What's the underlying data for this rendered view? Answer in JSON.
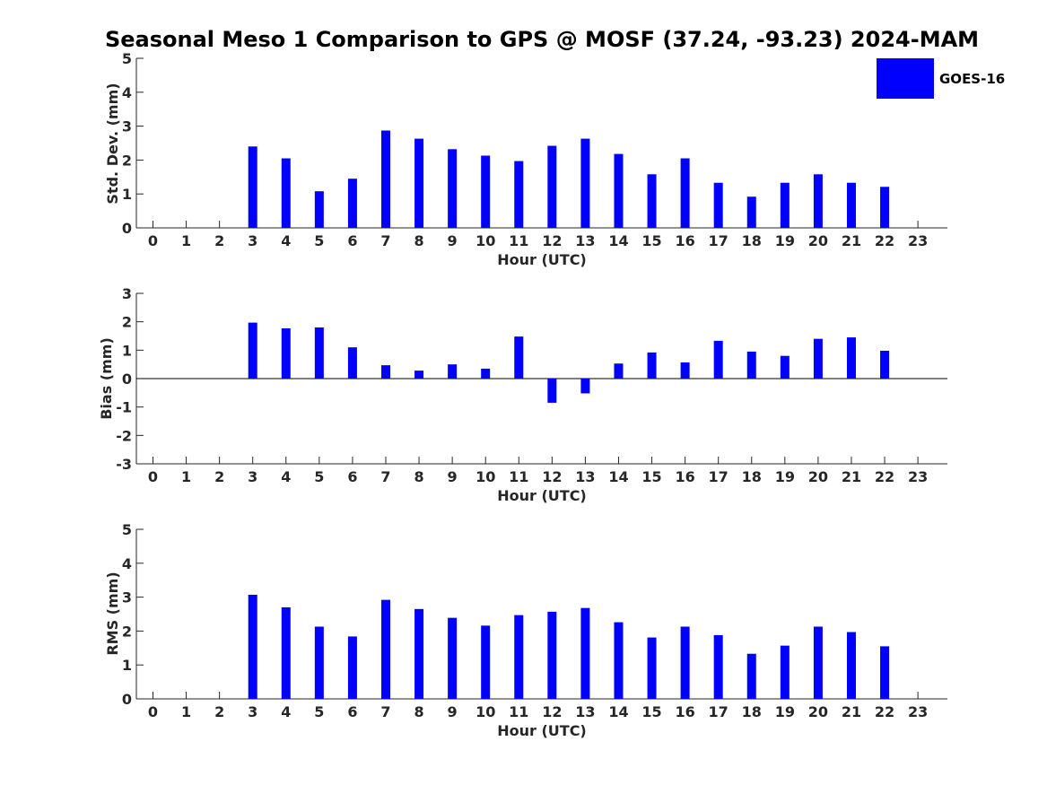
{
  "figure": {
    "title": "Seasonal Meso 1 Comparison to GPS @ MOSF (37.24, -93.23) 2024-MAM"
  },
  "legend": {
    "label": "GOES-16",
    "color": "#0000ff",
    "placement": "top-right"
  },
  "chart_data": [
    {
      "type": "bar",
      "title": "",
      "xlabel": "Hour (UTC)",
      "ylabel": "Std. Dev. (mm)",
      "categories": [
        "0",
        "1",
        "2",
        "3",
        "4",
        "5",
        "6",
        "7",
        "8",
        "9",
        "10",
        "11",
        "12",
        "13",
        "14",
        "15",
        "16",
        "17",
        "18",
        "19",
        "20",
        "21",
        "22",
        "23"
      ],
      "series": [
        {
          "name": "GOES-16",
          "color": "#0000ff",
          "values": [
            null,
            null,
            null,
            2.4,
            2.05,
            1.08,
            1.45,
            2.87,
            2.63,
            2.32,
            2.13,
            1.97,
            2.42,
            2.63,
            2.18,
            1.58,
            2.05,
            1.33,
            0.92,
            1.33,
            1.58,
            1.33,
            1.21,
            null
          ]
        }
      ],
      "ylim": [
        0,
        5
      ],
      "yticks": [
        "0",
        "1",
        "2",
        "3",
        "4",
        "5"
      ],
      "grid": false
    },
    {
      "type": "bar",
      "title": "",
      "xlabel": "Hour (UTC)",
      "ylabel": "Bias (mm)",
      "categories": [
        "0",
        "1",
        "2",
        "3",
        "4",
        "5",
        "6",
        "7",
        "8",
        "9",
        "10",
        "11",
        "12",
        "13",
        "14",
        "15",
        "16",
        "17",
        "18",
        "19",
        "20",
        "21",
        "22",
        "23"
      ],
      "series": [
        {
          "name": "GOES-16",
          "color": "#0000ff",
          "values": [
            null,
            null,
            null,
            1.97,
            1.77,
            1.8,
            1.1,
            0.47,
            0.28,
            0.5,
            0.35,
            1.48,
            -0.85,
            -0.52,
            0.53,
            0.92,
            0.57,
            1.33,
            0.95,
            0.8,
            1.4,
            1.45,
            0.98,
            null
          ]
        }
      ],
      "ylim": [
        -3,
        3
      ],
      "yticks": [
        "-3",
        "-2",
        "-1",
        "0",
        "1",
        "2",
        "3"
      ],
      "grid": false
    },
    {
      "type": "bar",
      "title": "",
      "xlabel": "Hour (UTC)",
      "ylabel": "RMS (mm)",
      "categories": [
        "0",
        "1",
        "2",
        "3",
        "4",
        "5",
        "6",
        "7",
        "8",
        "9",
        "10",
        "11",
        "12",
        "13",
        "14",
        "15",
        "16",
        "17",
        "18",
        "19",
        "20",
        "21",
        "22",
        "23"
      ],
      "series": [
        {
          "name": "GOES-16",
          "color": "#0000ff",
          "values": [
            null,
            null,
            null,
            3.07,
            2.7,
            2.13,
            1.84,
            2.92,
            2.65,
            2.39,
            2.16,
            2.47,
            2.57,
            2.68,
            2.26,
            1.81,
            2.13,
            1.88,
            1.33,
            1.57,
            2.13,
            1.97,
            1.55,
            null
          ]
        }
      ],
      "ylim": [
        0,
        5
      ],
      "yticks": [
        "0",
        "1",
        "2",
        "3",
        "4",
        "5"
      ],
      "grid": false
    }
  ]
}
